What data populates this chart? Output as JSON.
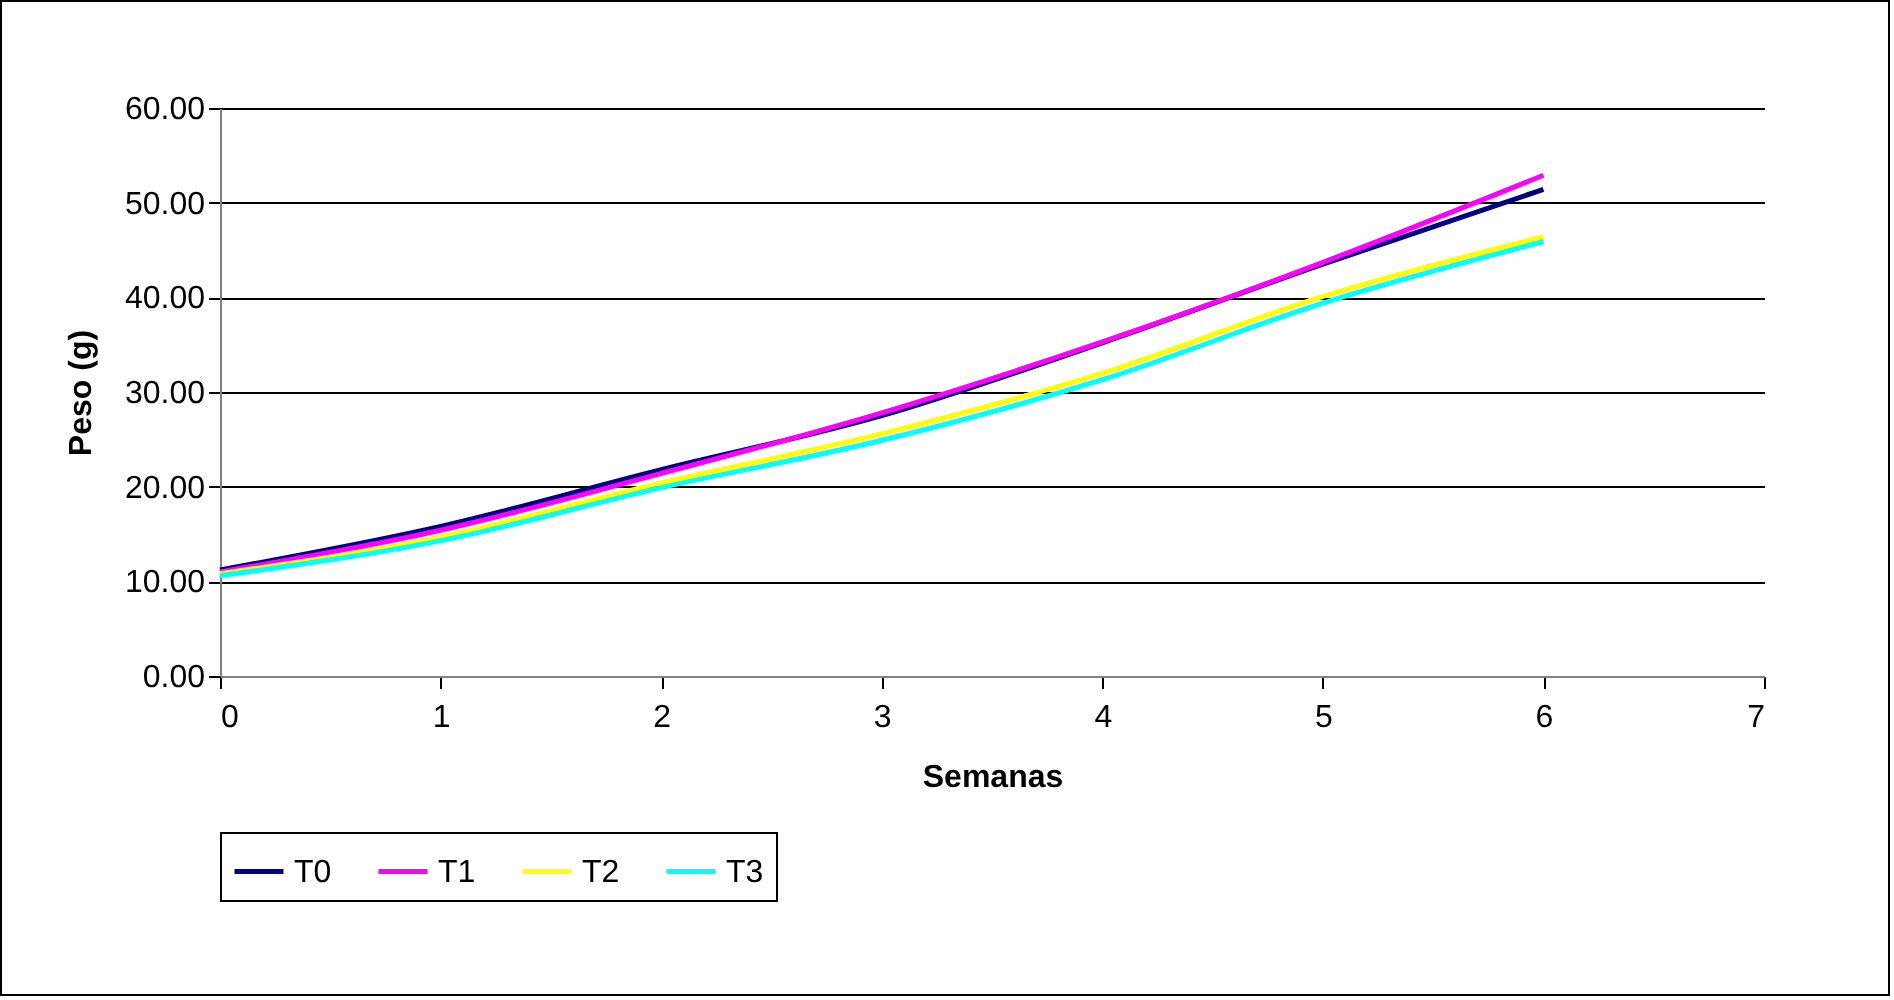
{
  "chart_data": {
    "type": "line",
    "xlabel": "Semanas",
    "ylabel": "Peso (g)",
    "x": [
      0,
      1,
      2,
      3,
      4,
      5,
      6
    ],
    "series": [
      {
        "name": "T0",
        "color": "#000080",
        "values": [
          11.2,
          15.8,
          21.8,
          27.5,
          35.2,
          43.5,
          51.4
        ]
      },
      {
        "name": "T1",
        "color": "#ff00ff",
        "values": [
          11.0,
          15.4,
          21.4,
          27.8,
          35.3,
          43.7,
          52.9
        ]
      },
      {
        "name": "T2",
        "color": "#ffff00",
        "values": [
          10.8,
          14.7,
          20.4,
          25.6,
          32.0,
          40.1,
          46.4
        ]
      },
      {
        "name": "T3",
        "color": "#00ffff",
        "values": [
          10.6,
          14.3,
          19.9,
          24.9,
          31.3,
          39.4,
          45.9
        ]
      }
    ],
    "xlim": [
      0,
      7
    ],
    "xticks": [
      0,
      1,
      2,
      3,
      4,
      5,
      6,
      7
    ],
    "ylim": [
      0,
      60
    ],
    "yticks": [
      {
        "value": 0,
        "label": "0.00"
      },
      {
        "value": 10,
        "label": "10.00"
      },
      {
        "value": 20,
        "label": "20.00"
      },
      {
        "value": 30,
        "label": "30.00"
      },
      {
        "value": 40,
        "label": "40.00"
      },
      {
        "value": 50,
        "label": "50.00"
      },
      {
        "value": 60,
        "label": "60.00"
      }
    ],
    "grid": "y",
    "legend": "bottom",
    "marker": "none",
    "line_style": "solid"
  }
}
